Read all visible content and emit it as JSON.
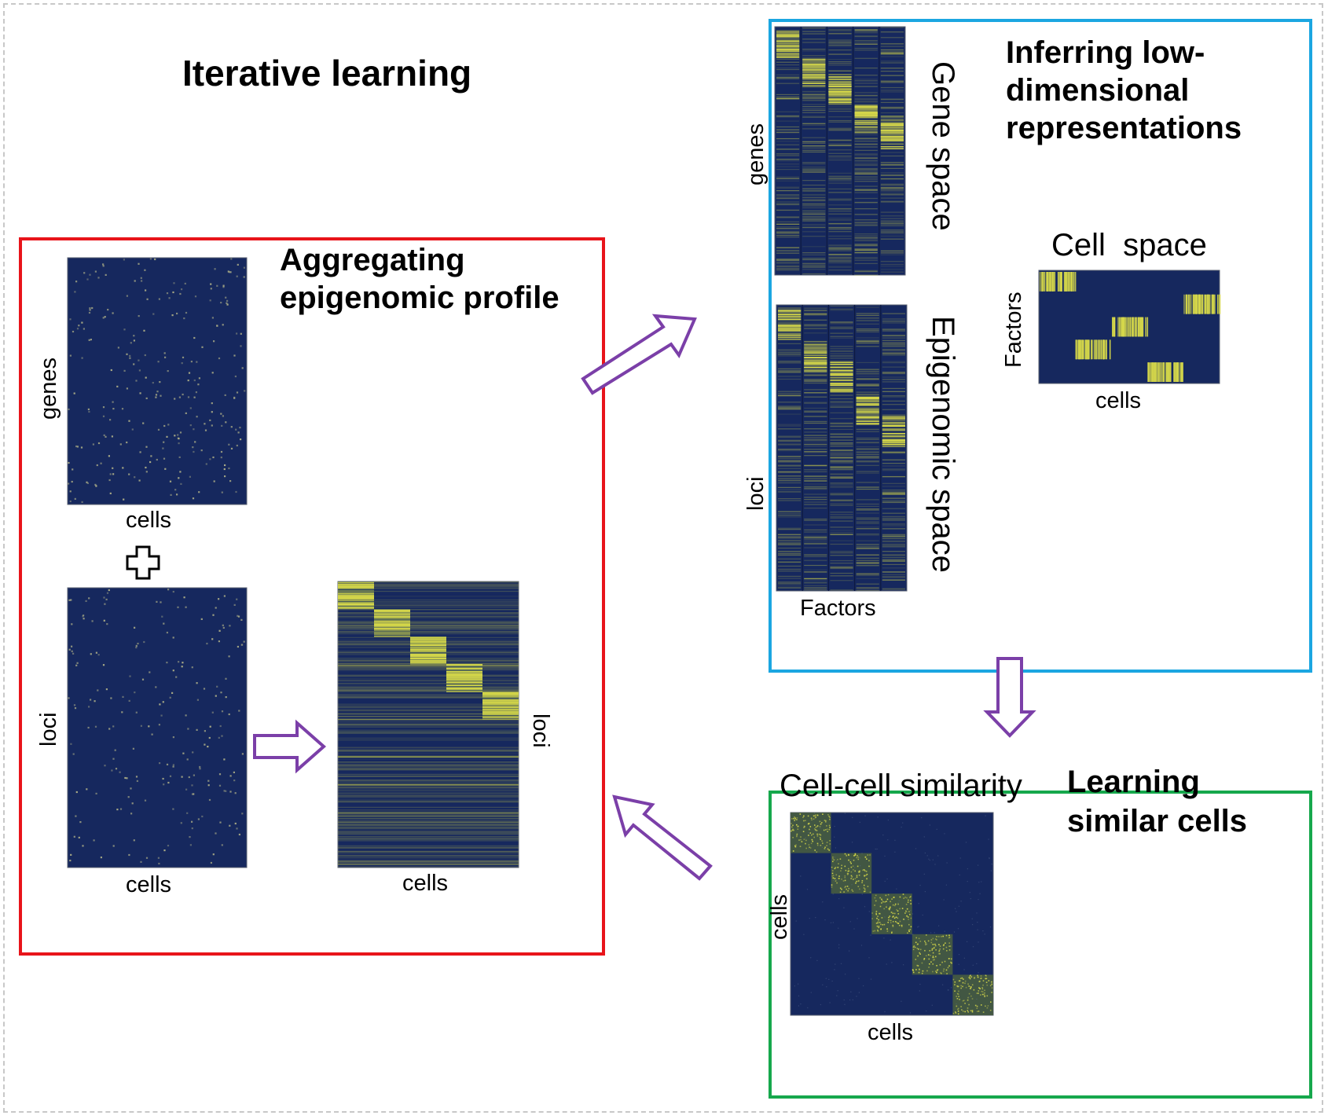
{
  "title": "Iterative learning",
  "panels": {
    "aggregating": {
      "heading": [
        "Aggregating",
        "epigenomic profile"
      ],
      "genes_matrix": {
        "row_label": "genes",
        "col_label": "cells"
      },
      "loci_matrix": {
        "row_label": "loci",
        "col_label": "cells"
      },
      "aggregated_matrix": {
        "row_label": "loci",
        "col_label": "cells"
      },
      "plus_symbol": "+"
    },
    "inferring": {
      "heading": [
        "Inferring low-",
        "dimensional",
        "representations"
      ],
      "gene_space": {
        "row_label": "genes",
        "side_label": "Gene space"
      },
      "epigenomic_space": {
        "row_label": "loci",
        "side_label": "Epigenomic space",
        "col_label": "Factors"
      },
      "cell_space": {
        "title": "Cell  space",
        "row_label": "Factors",
        "col_label": "cells"
      }
    },
    "learning": {
      "heading": [
        "Learning",
        "similar cells"
      ],
      "similarity": {
        "title": "Cell-cell similarity",
        "row_label": "cells",
        "col_label": "cells"
      }
    }
  },
  "colors": {
    "red_panel": "#e8141a",
    "blue_panel": "#1ba6e1",
    "green_panel": "#16a84c",
    "arrow": "#7b3fa8",
    "heatmap_bg": "#16285e",
    "heatmap_hi": "#d6d84a"
  }
}
